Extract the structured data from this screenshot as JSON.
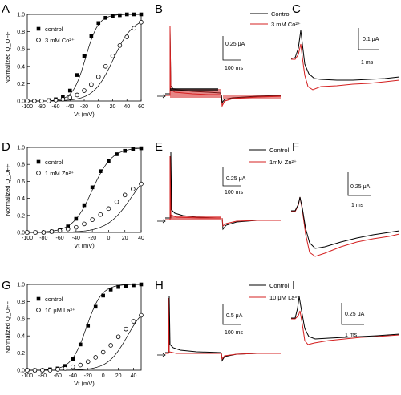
{
  "panels": {
    "A": "A",
    "B": "B",
    "C": "C",
    "D": "D",
    "E": "E",
    "F": "F",
    "G": "G",
    "H": "H",
    "I": "I"
  },
  "colors": {
    "control": "#000000",
    "treated": "#d42020"
  },
  "chart_data": [
    {
      "id": "A",
      "type": "scatter",
      "xlabel": "Vt (mV)",
      "ylabel": "Normalized Q_OFF",
      "xlim": [
        -100,
        60
      ],
      "ylim": [
        0,
        1.0
      ],
      "xticks": [
        -100,
        -80,
        -60,
        -40,
        -20,
        0,
        20,
        40,
        60
      ],
      "yticks": [
        0.0,
        0.2,
        0.4,
        0.6,
        0.8,
        1.0
      ],
      "fit_params": [
        {
          "v": -18,
          "k": 9
        },
        {
          "v": 21,
          "k": 14
        }
      ],
      "x": [
        -100,
        -90,
        -80,
        -70,
        -60,
        -50,
        -40,
        -30,
        -20,
        -10,
        0,
        10,
        20,
        30,
        40,
        50,
        60
      ],
      "series": [
        {
          "name": "control",
          "marker": "filled-square",
          "values": [
            0.0,
            0.0,
            0.0,
            0.01,
            0.02,
            0.05,
            0.12,
            0.3,
            0.52,
            0.75,
            0.9,
            0.96,
            0.98,
            0.99,
            1.0,
            1.0,
            1.0
          ]
        },
        {
          "name": "3 mM Co²⁺",
          "marker": "open-circle",
          "values": [
            0.0,
            0.0,
            0.0,
            0.0,
            0.01,
            0.02,
            0.04,
            0.07,
            0.12,
            0.19,
            0.28,
            0.4,
            0.52,
            0.64,
            0.74,
            0.84,
            0.91
          ]
        }
      ]
    },
    {
      "id": "D",
      "type": "scatter",
      "xlabel": "Vt (mV)",
      "ylabel": "Normalized Q_OFF",
      "xlim": [
        -100,
        40
      ],
      "ylim": [
        0,
        1.0
      ],
      "xticks": [
        -100,
        -80,
        -60,
        -40,
        -20,
        0,
        20,
        40
      ],
      "yticks": [
        0.0,
        0.2,
        0.4,
        0.6,
        0.8,
        1.0
      ],
      "fit_params": [
        {
          "v": -20,
          "k": 12
        },
        {
          "v": 28,
          "k": 15
        }
      ],
      "x": [
        -100,
        -90,
        -80,
        -70,
        -60,
        -50,
        -40,
        -30,
        -20,
        -10,
        0,
        10,
        20,
        30,
        40
      ],
      "series": [
        {
          "name": "control",
          "marker": "filled-square",
          "values": [
            0.0,
            0.0,
            0.0,
            0.01,
            0.03,
            0.07,
            0.16,
            0.32,
            0.53,
            0.72,
            0.84,
            0.92,
            0.96,
            0.98,
            0.99
          ]
        },
        {
          "name": "1 mM Zn²⁺",
          "marker": "open-circle",
          "values": [
            0.0,
            0.0,
            0.0,
            0.01,
            0.02,
            0.04,
            0.06,
            0.1,
            0.15,
            0.21,
            0.28,
            0.36,
            0.44,
            0.51,
            0.57
          ]
        }
      ]
    },
    {
      "id": "G",
      "type": "scatter",
      "xlabel": "Vt (mV)",
      "ylabel": "Normalized Q_OFF",
      "xlim": [
        -100,
        50
      ],
      "ylim": [
        0,
        1.0
      ],
      "xticks": [
        -100,
        -80,
        -60,
        -40,
        -20,
        0,
        20,
        40
      ],
      "yticks": [
        0.0,
        0.2,
        0.4,
        0.6,
        0.8,
        1.0
      ],
      "fit_params": [
        {
          "v": -22,
          "k": 10
        },
        {
          "v": 32,
          "k": 13
        }
      ],
      "x": [
        -100,
        -90,
        -80,
        -70,
        -60,
        -50,
        -40,
        -30,
        -20,
        -10,
        0,
        10,
        20,
        30,
        40,
        50
      ],
      "series": [
        {
          "name": "control",
          "marker": "filled-square",
          "values": [
            0.0,
            0.0,
            0.0,
            0.01,
            0.02,
            0.05,
            0.13,
            0.3,
            0.52,
            0.74,
            0.87,
            0.94,
            0.97,
            0.98,
            0.99,
            1.0
          ]
        },
        {
          "name": "10 μM La³⁺",
          "marker": "open-circle",
          "values": [
            0.0,
            0.0,
            0.0,
            0.0,
            0.01,
            0.02,
            0.04,
            0.06,
            0.1,
            0.15,
            0.21,
            0.29,
            0.39,
            0.48,
            0.57,
            0.64
          ]
        }
      ]
    }
  ],
  "traces": [
    {
      "id": "B",
      "type": "line",
      "legend": [
        "Control",
        "3 mM Co²⁺"
      ],
      "scale_y": "0.25 μA",
      "scale_x": "100 ms"
    },
    {
      "id": "C",
      "type": "line",
      "scale_y": "0.1 μA",
      "scale_x": "1 ms"
    },
    {
      "id": "E",
      "type": "line",
      "legend": [
        "Control",
        "1mM Zn²⁺"
      ],
      "scale_y": "0.25 μA",
      "scale_x": "100 ms"
    },
    {
      "id": "F",
      "type": "line",
      "scale_y": "0.25 μA",
      "scale_x": "1 ms"
    },
    {
      "id": "H",
      "type": "line",
      "legend": [
        "Control",
        "10 μM La³⁺"
      ],
      "scale_y": "0.5 μA",
      "scale_x": "100 ms"
    },
    {
      "id": "I",
      "type": "line",
      "scale_y": "0.25 μA",
      "scale_x": "1 ms"
    }
  ]
}
